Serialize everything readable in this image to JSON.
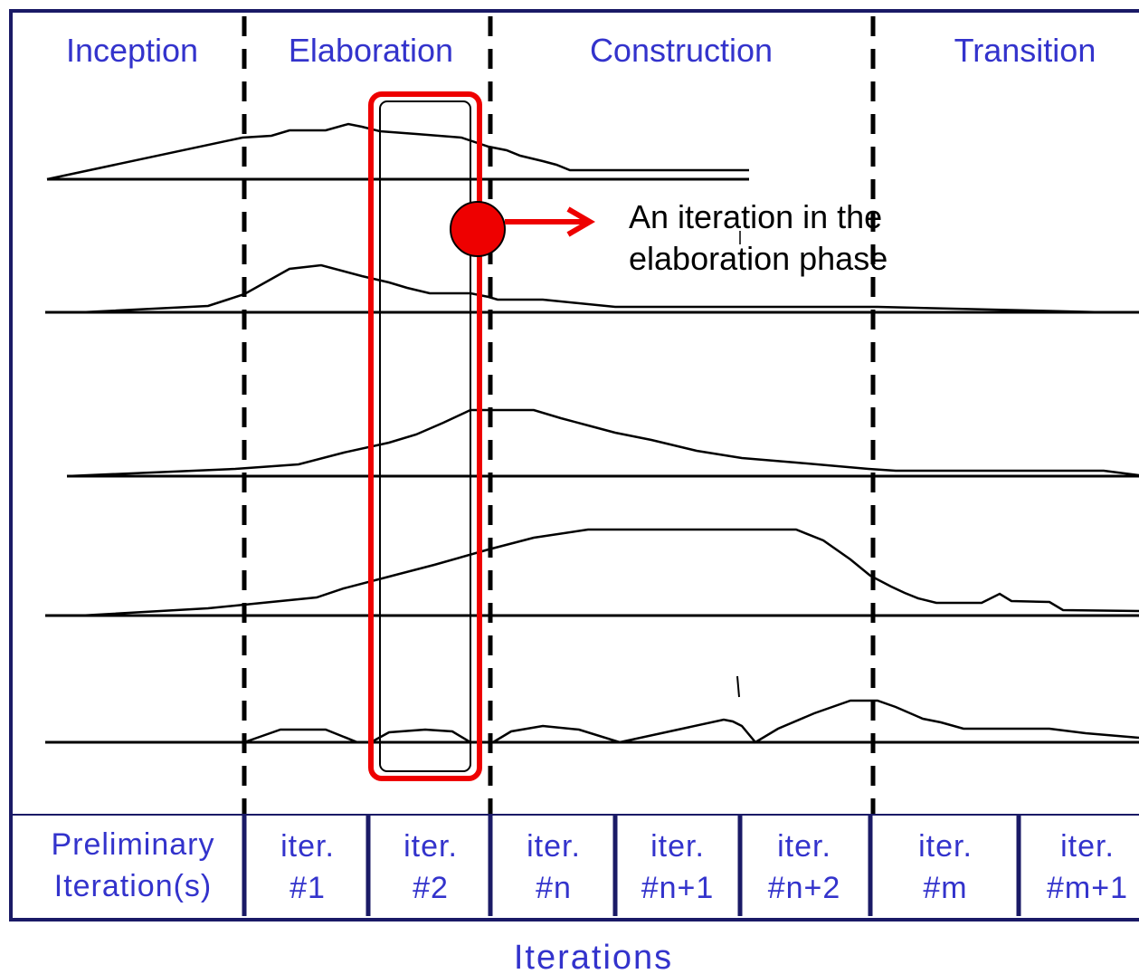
{
  "phases": [
    {
      "name": "Inception"
    },
    {
      "name": "Elaboration"
    },
    {
      "name": "Construction"
    },
    {
      "name": "Transition"
    }
  ],
  "iterations": [
    {
      "line1": "Preliminary",
      "line2": "Iteration(s)"
    },
    {
      "line1": "iter.",
      "line2": "#1"
    },
    {
      "line1": "iter.",
      "line2": "#2"
    },
    {
      "line1": "iter.",
      "line2": "#n"
    },
    {
      "line1": "iter.",
      "line2": "#n+1"
    },
    {
      "line1": "iter.",
      "line2": "#n+2"
    },
    {
      "line1": "iter.",
      "line2": "#m"
    },
    {
      "line1": "iter.",
      "line2": "#m+1"
    }
  ],
  "callout": {
    "line1": "An iteration in the",
    "line2": "elaboration phase"
  },
  "axis_title": "Iterations",
  "colors": {
    "label_blue": "#3333cc",
    "frame_blue": "#1a1a66",
    "highlight_red": "#ee0000"
  }
}
